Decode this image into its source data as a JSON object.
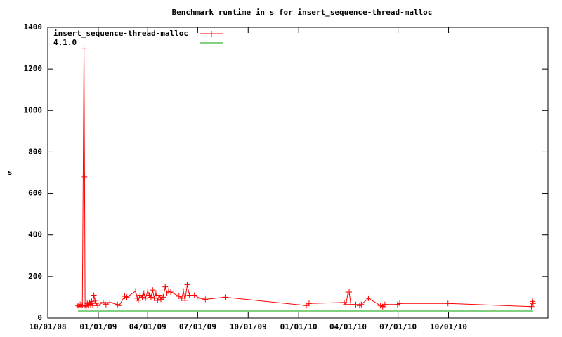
{
  "chart_data": {
    "type": "line",
    "title": "Benchmark runtime in s for insert_sequence-thread-malloc",
    "y_label": "s",
    "xlim": [
      "2008-10-01",
      "2011-03-31"
    ],
    "xticks": [
      {
        "value": "2008-10-01",
        "label": "10/01/08"
      },
      {
        "value": "2009-01-01",
        "label": "01/01/09"
      },
      {
        "value": "2009-04-01",
        "label": "04/01/09"
      },
      {
        "value": "2009-07-01",
        "label": "07/01/09"
      },
      {
        "value": "2009-10-01",
        "label": "10/01/09"
      },
      {
        "value": "2010-01-01",
        "label": "01/01/10"
      },
      {
        "value": "2010-04-01",
        "label": "04/01/10"
      },
      {
        "value": "2010-07-01",
        "label": "07/01/10"
      },
      {
        "value": "2010-10-01",
        "label": "10/01/10"
      }
    ],
    "ylim": [
      0,
      1400
    ],
    "yticks": [
      0,
      200,
      400,
      600,
      800,
      1000,
      1200,
      1400
    ],
    "grid": false,
    "legend": "top-left",
    "series": [
      {
        "name": "insert_sequence-thread-malloc",
        "color": "#ff0000",
        "markers": true,
        "x": [
          "2008-11-25",
          "2008-11-27",
          "2008-11-29",
          "2008-12-01",
          "2008-12-03",
          "2008-12-06",
          "2008-12-07",
          "2008-12-08",
          "2008-12-10",
          "2008-12-12",
          "2008-12-14",
          "2008-12-16",
          "2008-12-18",
          "2008-12-20",
          "2008-12-22",
          "2008-12-24",
          "2008-12-26",
          "2008-12-28",
          "2008-12-31",
          "2009-01-10",
          "2009-01-15",
          "2009-01-22",
          "2009-02-05",
          "2009-02-08",
          "2009-02-18",
          "2009-02-22",
          "2009-03-10",
          "2009-03-13",
          "2009-03-15",
          "2009-03-18",
          "2009-03-22",
          "2009-03-25",
          "2009-03-28",
          "2009-04-01",
          "2009-04-04",
          "2009-04-07",
          "2009-04-10",
          "2009-04-13",
          "2009-04-16",
          "2009-04-19",
          "2009-04-22",
          "2009-04-25",
          "2009-04-29",
          "2009-05-03",
          "2009-05-06",
          "2009-05-09",
          "2009-05-13",
          "2009-05-28",
          "2009-06-02",
          "2009-06-05",
          "2009-06-08",
          "2009-06-12",
          "2009-06-16",
          "2009-06-25",
          "2009-07-05",
          "2009-07-15",
          "2009-08-20",
          "2010-01-15",
          "2010-01-20",
          "2010-03-25",
          "2010-03-28",
          "2010-04-01",
          "2010-04-03",
          "2010-04-06",
          "2010-04-15",
          "2010-04-22",
          "2010-04-25",
          "2010-05-08",
          "2010-05-30",
          "2010-06-03",
          "2010-06-07",
          "2010-06-30",
          "2010-07-04",
          "2010-09-30",
          "2011-03-01",
          "2011-03-03",
          "2011-03-04"
        ],
        "values": [
          60,
          55,
          65,
          58,
          62,
          1300,
          680,
          60,
          55,
          70,
          60,
          75,
          65,
          80,
          60,
          110,
          85,
          70,
          60,
          75,
          65,
          75,
          65,
          60,
          105,
          100,
          130,
          95,
          85,
          110,
          100,
          120,
          95,
          130,
          110,
          100,
          135,
          95,
          120,
          85,
          110,
          90,
          100,
          150,
          120,
          130,
          125,
          105,
          95,
          130,
          85,
          160,
          110,
          110,
          95,
          90,
          100,
          60,
          70,
          75,
          65,
          125,
          125,
          65,
          65,
          60,
          65,
          95,
          60,
          55,
          65,
          65,
          70,
          70,
          55,
          80,
          70
        ]
      },
      {
        "name": "4.1.0",
        "color": "#00a000",
        "markers": false,
        "x": [
          "2008-11-25",
          "2011-03-04"
        ],
        "values": [
          34,
          34
        ]
      }
    ]
  }
}
